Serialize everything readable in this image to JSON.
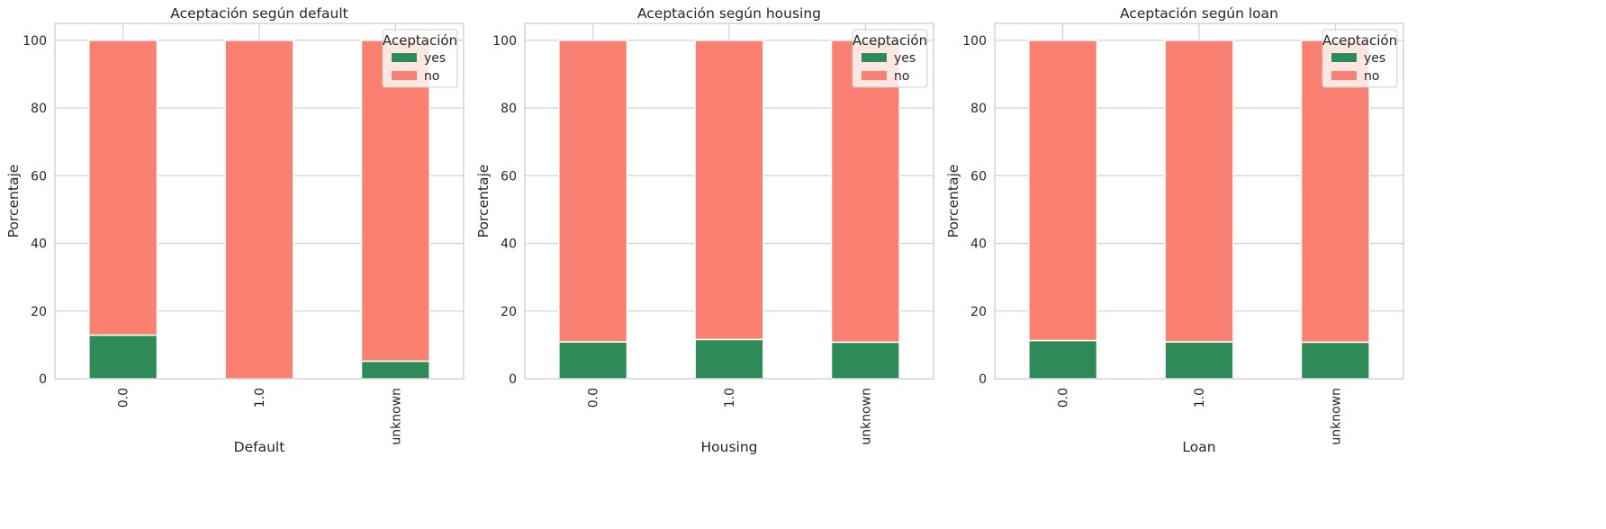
{
  "colors": {
    "yes": "#2e8b57",
    "no": "#fa8072",
    "grid": "#cccccc",
    "frame": "#cccccc",
    "text": "#262626"
  },
  "chart_data": [
    {
      "type": "bar",
      "stacked": true,
      "title": "Aceptación según default",
      "xlabel": "Default",
      "ylabel": "Porcentaje",
      "categories": [
        "0.0",
        "1.0",
        "unknown"
      ],
      "series": [
        {
          "name": "yes",
          "values": [
            12.9,
            0.0,
            5.2
          ]
        },
        {
          "name": "no",
          "values": [
            87.1,
            100.0,
            94.8
          ]
        }
      ],
      "ylim": [
        0,
        105
      ],
      "yticks": [
        0,
        20,
        40,
        60,
        80,
        100
      ],
      "legend": {
        "title": "Aceptación",
        "placement": "top-right"
      },
      "grid": true
    },
    {
      "type": "bar",
      "stacked": true,
      "title": "Aceptación según housing",
      "xlabel": "Housing",
      "ylabel": "Porcentaje",
      "categories": [
        "0.0",
        "1.0",
        "unknown"
      ],
      "series": [
        {
          "name": "yes",
          "values": [
            10.9,
            11.6,
            10.8
          ]
        },
        {
          "name": "no",
          "values": [
            89.1,
            88.4,
            89.2
          ]
        }
      ],
      "ylim": [
        0,
        105
      ],
      "yticks": [
        0,
        20,
        40,
        60,
        80,
        100
      ],
      "legend": {
        "title": "Aceptación",
        "placement": "top-right"
      },
      "grid": true
    },
    {
      "type": "bar",
      "stacked": true,
      "title": "Aceptación según loan",
      "xlabel": "Loan",
      "ylabel": "Porcentaje",
      "categories": [
        "0.0",
        "1.0",
        "unknown"
      ],
      "series": [
        {
          "name": "yes",
          "values": [
            11.3,
            10.9,
            10.8
          ]
        },
        {
          "name": "no",
          "values": [
            88.7,
            89.1,
            89.2
          ]
        }
      ],
      "ylim": [
        0,
        105
      ],
      "yticks": [
        0,
        20,
        40,
        60,
        80,
        100
      ],
      "legend": {
        "title": "Aceptación",
        "placement": "top-right"
      },
      "grid": true
    }
  ]
}
